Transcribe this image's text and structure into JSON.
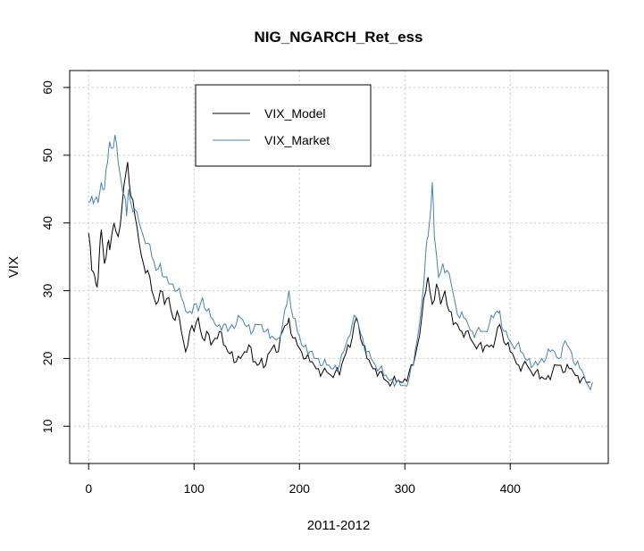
{
  "chart_data": {
    "type": "line",
    "title": "NIG_NGARCH_Ret_ess",
    "xlabel": "2011-2012",
    "ylabel": "VIX",
    "xlim": [
      -18,
      493
    ],
    "ylim": [
      4.5,
      62.5
    ],
    "x_ticks": [
      0,
      100,
      200,
      300,
      400
    ],
    "y_ticks": [
      10,
      20,
      30,
      40,
      50,
      60
    ],
    "grid": true,
    "legend_position": "top-left-inset",
    "series": [
      {
        "name": "VIX_Model",
        "color": "#000000",
        "points": [
          [
            0,
            38.5
          ],
          [
            3,
            33
          ],
          [
            6,
            32
          ],
          [
            8,
            30.5
          ],
          [
            10,
            35
          ],
          [
            12,
            39
          ],
          [
            15,
            34
          ],
          [
            18,
            37
          ],
          [
            20,
            36
          ],
          [
            24,
            40
          ],
          [
            28,
            38
          ],
          [
            32,
            43
          ],
          [
            35,
            47
          ],
          [
            37,
            49
          ],
          [
            40,
            44
          ],
          [
            44,
            41
          ],
          [
            48,
            37
          ],
          [
            52,
            34
          ],
          [
            56,
            33
          ],
          [
            60,
            30
          ],
          [
            64,
            28
          ],
          [
            68,
            30
          ],
          [
            72,
            28
          ],
          [
            76,
            29
          ],
          [
            80,
            26
          ],
          [
            84,
            27
          ],
          [
            88,
            24
          ],
          [
            92,
            21
          ],
          [
            96,
            24
          ],
          [
            100,
            24
          ],
          [
            104,
            26
          ],
          [
            108,
            23
          ],
          [
            112,
            24
          ],
          [
            116,
            22
          ],
          [
            120,
            23
          ],
          [
            124,
            24
          ],
          [
            128,
            22
          ],
          [
            132,
            21
          ],
          [
            136,
            21
          ],
          [
            140,
            19.5
          ],
          [
            144,
            20
          ],
          [
            148,
            21
          ],
          [
            152,
            22
          ],
          [
            156,
            19.5
          ],
          [
            160,
            19
          ],
          [
            164,
            20
          ],
          [
            168,
            19
          ],
          [
            172,
            21
          ],
          [
            176,
            22
          ],
          [
            180,
            21
          ],
          [
            184,
            24
          ],
          [
            188,
            25
          ],
          [
            190,
            26
          ],
          [
            194,
            23
          ],
          [
            198,
            22
          ],
          [
            202,
            21
          ],
          [
            206,
            20
          ],
          [
            210,
            19.5
          ],
          [
            214,
            19
          ],
          [
            218,
            18.5
          ],
          [
            222,
            18
          ],
          [
            226,
            18
          ],
          [
            230,
            17.5
          ],
          [
            234,
            18
          ],
          [
            238,
            17.5
          ],
          [
            242,
            20
          ],
          [
            246,
            22
          ],
          [
            250,
            23
          ],
          [
            254,
            26
          ],
          [
            256,
            25
          ],
          [
            260,
            22
          ],
          [
            264,
            20
          ],
          [
            268,
            19
          ],
          [
            272,
            18.5
          ],
          [
            276,
            18
          ],
          [
            280,
            17
          ],
          [
            284,
            16.5
          ],
          [
            288,
            16.5
          ],
          [
            292,
            16.5
          ],
          [
            296,
            16.5
          ],
          [
            300,
            17
          ],
          [
            304,
            18
          ],
          [
            308,
            19
          ],
          [
            312,
            22
          ],
          [
            316,
            26
          ],
          [
            320,
            30
          ],
          [
            322,
            32
          ],
          [
            326,
            28
          ],
          [
            330,
            31
          ],
          [
            334,
            28
          ],
          [
            338,
            30
          ],
          [
            342,
            27
          ],
          [
            346,
            25
          ],
          [
            350,
            25
          ],
          [
            354,
            24
          ],
          [
            358,
            24
          ],
          [
            362,
            23
          ],
          [
            366,
            22
          ],
          [
            370,
            22
          ],
          [
            374,
            21
          ],
          [
            378,
            22
          ],
          [
            382,
            22
          ],
          [
            386,
            23
          ],
          [
            390,
            25
          ],
          [
            392,
            24
          ],
          [
            396,
            22
          ],
          [
            400,
            21
          ],
          [
            404,
            20
          ],
          [
            408,
            19
          ],
          [
            412,
            19
          ],
          [
            416,
            19
          ],
          [
            420,
            18
          ],
          [
            424,
            18
          ],
          [
            428,
            17
          ],
          [
            432,
            17
          ],
          [
            436,
            17.5
          ],
          [
            440,
            18
          ],
          [
            444,
            19
          ],
          [
            448,
            19
          ],
          [
            452,
            18
          ],
          [
            456,
            18.5
          ],
          [
            460,
            18
          ],
          [
            464,
            17.5
          ],
          [
            468,
            17
          ],
          [
            472,
            16.5
          ],
          [
            476,
            16.5
          ]
        ]
      },
      {
        "name": "VIX_Market",
        "color": "#4682b4",
        "points": [
          [
            0,
            43
          ],
          [
            3,
            44
          ],
          [
            6,
            43.5
          ],
          [
            9,
            43
          ],
          [
            12,
            46
          ],
          [
            15,
            45
          ],
          [
            18,
            49
          ],
          [
            20,
            52
          ],
          [
            22,
            51
          ],
          [
            25,
            53
          ],
          [
            28,
            49
          ],
          [
            31,
            46
          ],
          [
            34,
            44
          ],
          [
            36,
            41
          ],
          [
            38,
            45
          ],
          [
            40,
            43
          ],
          [
            44,
            42
          ],
          [
            48,
            40
          ],
          [
            52,
            38
          ],
          [
            56,
            37
          ],
          [
            60,
            35
          ],
          [
            64,
            33
          ],
          [
            68,
            34
          ],
          [
            72,
            32
          ],
          [
            76,
            31
          ],
          [
            80,
            31
          ],
          [
            84,
            30
          ],
          [
            88,
            29
          ],
          [
            92,
            27
          ],
          [
            96,
            27
          ],
          [
            100,
            28
          ],
          [
            104,
            27
          ],
          [
            108,
            29
          ],
          [
            112,
            27
          ],
          [
            116,
            26
          ],
          [
            120,
            25
          ],
          [
            124,
            25
          ],
          [
            128,
            25
          ],
          [
            132,
            24
          ],
          [
            136,
            25
          ],
          [
            140,
            25
          ],
          [
            144,
            26
          ],
          [
            148,
            25
          ],
          [
            152,
            25
          ],
          [
            156,
            24
          ],
          [
            160,
            25
          ],
          [
            164,
            25
          ],
          [
            168,
            24
          ],
          [
            172,
            23
          ],
          [
            176,
            23
          ],
          [
            180,
            23
          ],
          [
            184,
            25
          ],
          [
            188,
            28
          ],
          [
            190,
            30
          ],
          [
            194,
            26
          ],
          [
            198,
            24
          ],
          [
            202,
            22
          ],
          [
            206,
            22
          ],
          [
            210,
            21
          ],
          [
            214,
            20
          ],
          [
            218,
            20
          ],
          [
            222,
            19
          ],
          [
            226,
            19
          ],
          [
            230,
            18.5
          ],
          [
            234,
            19
          ],
          [
            238,
            19
          ],
          [
            242,
            21
          ],
          [
            246,
            23
          ],
          [
            250,
            25
          ],
          [
            254,
            26
          ],
          [
            256,
            25
          ],
          [
            260,
            23
          ],
          [
            264,
            21
          ],
          [
            268,
            20
          ],
          [
            272,
            19
          ],
          [
            276,
            18.5
          ],
          [
            280,
            17.5
          ],
          [
            284,
            17
          ],
          [
            288,
            17
          ],
          [
            292,
            16.5
          ],
          [
            296,
            16
          ],
          [
            300,
            16
          ],
          [
            304,
            17
          ],
          [
            308,
            19
          ],
          [
            312,
            23
          ],
          [
            316,
            28
          ],
          [
            320,
            36
          ],
          [
            322,
            38
          ],
          [
            324,
            41
          ],
          [
            326,
            46
          ],
          [
            328,
            38
          ],
          [
            332,
            32
          ],
          [
            336,
            34
          ],
          [
            340,
            33
          ],
          [
            344,
            31
          ],
          [
            348,
            28
          ],
          [
            352,
            26
          ],
          [
            356,
            26
          ],
          [
            360,
            25
          ],
          [
            364,
            24
          ],
          [
            368,
            24
          ],
          [
            372,
            24
          ],
          [
            376,
            24
          ],
          [
            380,
            25
          ],
          [
            384,
            26
          ],
          [
            388,
            27
          ],
          [
            390,
            27
          ],
          [
            394,
            24
          ],
          [
            398,
            23
          ],
          [
            402,
            22
          ],
          [
            406,
            22
          ],
          [
            410,
            21
          ],
          [
            414,
            20
          ],
          [
            418,
            20
          ],
          [
            422,
            19
          ],
          [
            426,
            19
          ],
          [
            430,
            20
          ],
          [
            434,
            20
          ],
          [
            438,
            21
          ],
          [
            442,
            21
          ],
          [
            446,
            20
          ],
          [
            450,
            22
          ],
          [
            454,
            22
          ],
          [
            458,
            21
          ],
          [
            462,
            19
          ],
          [
            466,
            18.5
          ],
          [
            470,
            17.5
          ],
          [
            474,
            16
          ],
          [
            478,
            16.5
          ]
        ]
      }
    ]
  }
}
